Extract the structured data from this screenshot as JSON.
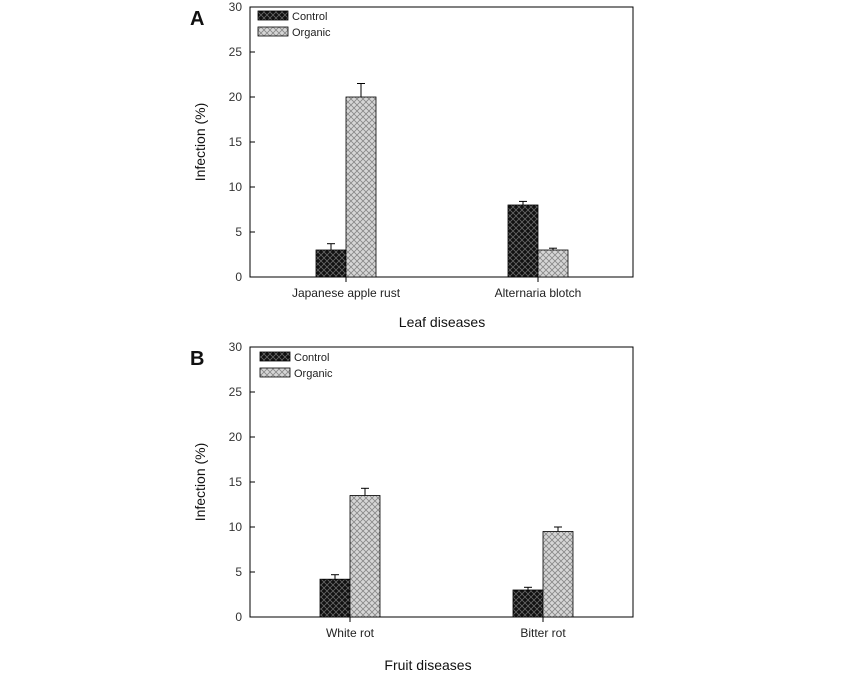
{
  "chart_data": [
    {
      "type": "bar",
      "panel_label": "A",
      "categories": [
        "Japanese apple rust",
        "Alternaria blotch"
      ],
      "series": [
        {
          "name": "Control",
          "values": [
            3,
            8
          ],
          "errors": [
            0.7,
            0.4
          ],
          "color": "#1a1a1a"
        },
        {
          "name": "Organic",
          "values": [
            20,
            3
          ],
          "errors": [
            1.5,
            0.2
          ],
          "color": "#c0c0c0"
        }
      ],
      "y_ticks": [
        "0",
        "5",
        "10",
        "15",
        "20",
        "25",
        "30"
      ],
      "xlabel": "Leaf diseases",
      "ylabel": "Infection (%)",
      "ylim": [
        0,
        30
      ],
      "legend_position": "top-left"
    },
    {
      "type": "bar",
      "panel_label": "B",
      "categories": [
        "White rot",
        "Bitter rot"
      ],
      "series": [
        {
          "name": "Control",
          "values": [
            4.2,
            3
          ],
          "errors": [
            0.5,
            0.3
          ],
          "color": "#1a1a1a"
        },
        {
          "name": "Organic",
          "values": [
            13.5,
            9.5
          ],
          "errors": [
            0.8,
            0.5
          ],
          "color": "#c0c0c0"
        }
      ],
      "y_ticks": [
        "0",
        "5",
        "10",
        "15",
        "20",
        "25",
        "30"
      ],
      "xlabel": "Fruit diseases",
      "ylabel": "Infection (%)",
      "ylim": [
        0,
        30
      ],
      "legend_position": "top-left"
    }
  ]
}
